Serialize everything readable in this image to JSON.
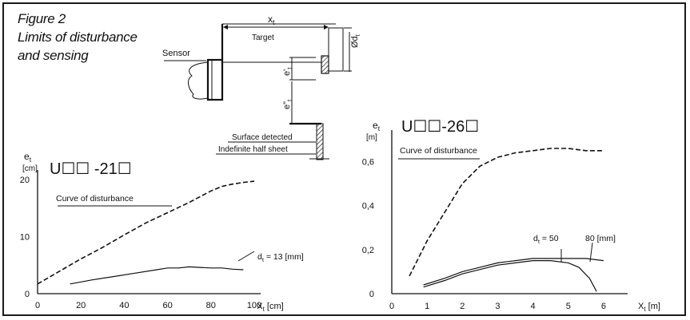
{
  "figure": {
    "number": "Figure 2",
    "caption_line1": "Limits of disturbance",
    "caption_line2": "and sensing"
  },
  "diagram": {
    "sensor_label": "Sensor",
    "xt_label": "x",
    "xt_sub": "t",
    "target_label": "Target",
    "dt_label": "Ød",
    "dt_sub": "t",
    "et1_label": "e'",
    "et1_sub": "t",
    "et2_label": "e\"",
    "et2_sub": "t",
    "surface_label": "Surface detected",
    "half_sheet_label": "Indefinite half sheet"
  },
  "chart_data": [
    {
      "type": "line",
      "title": "U☐☐ -21☐",
      "ylabel": "e",
      "ylabel_sub": "t",
      "yunit": "[cm]",
      "xlabel": "X",
      "xlabel_sub": "t",
      "xunit": "[cm]",
      "xlim": [
        0,
        100
      ],
      "ylim": [
        0,
        20
      ],
      "xticks": [
        "0",
        "20",
        "40",
        "60",
        "80",
        "100"
      ],
      "xtick_values": [
        0,
        20,
        40,
        60,
        80,
        100
      ],
      "yticks": [
        "0",
        "10",
        "20"
      ],
      "ytick_values": [
        0,
        10,
        20
      ],
      "series": [
        {
          "name": "Curve of disturbance",
          "style": "dashed",
          "x": [
            0,
            10,
            20,
            30,
            40,
            50,
            60,
            70,
            80,
            85,
            90,
            95,
            100
          ],
          "y": [
            1.7,
            3.9,
            6.1,
            8.1,
            10.3,
            12.4,
            14.2,
            16.0,
            18.0,
            18.8,
            19.2,
            19.5,
            19.7
          ]
        },
        {
          "name": "d",
          "name_sub": "t",
          "name_rest": " = 13 [mm]",
          "style": "solid",
          "x": [
            15,
            25,
            35,
            45,
            55,
            60,
            65,
            70,
            75,
            80,
            85,
            90,
            95
          ],
          "y": [
            1.7,
            2.4,
            3.0,
            3.6,
            4.2,
            4.5,
            4.5,
            4.7,
            4.6,
            4.5,
            4.5,
            4.3,
            4.2
          ]
        }
      ]
    },
    {
      "type": "line",
      "title": "U☐☐-26☐",
      "ylabel": "e",
      "ylabel_sub": "t",
      "yunit": "[m]",
      "xlabel": "X",
      "xlabel_sub": "t",
      "xunit": "[m]",
      "xlim": [
        0,
        6.5
      ],
      "ylim": [
        0,
        0.7
      ],
      "xticks": [
        "0",
        "1",
        "2",
        "3",
        "4",
        "5",
        "6"
      ],
      "xtick_values": [
        0,
        1,
        2,
        3,
        4,
        5,
        6
      ],
      "yticks": [
        "0",
        "0,2",
        "0,4",
        "0,6"
      ],
      "ytick_values": [
        0,
        0.2,
        0.4,
        0.6
      ],
      "series": [
        {
          "name": "Curve of disturbance",
          "style": "dashed",
          "x": [
            0.5,
            1,
            1.5,
            2,
            2.5,
            3,
            3.5,
            4,
            4.5,
            5,
            5.5,
            6
          ],
          "y": [
            0.08,
            0.24,
            0.37,
            0.5,
            0.58,
            0.62,
            0.64,
            0.65,
            0.66,
            0.66,
            0.65,
            0.65
          ]
        },
        {
          "name": "d",
          "name_sub": "t",
          "name_rest": " = 50",
          "style": "solid",
          "x": [
            0.9,
            1.5,
            2,
            2.5,
            3,
            3.5,
            4,
            4.5,
            5,
            5.3,
            5.6,
            5.8
          ],
          "y": [
            0.03,
            0.06,
            0.09,
            0.11,
            0.13,
            0.14,
            0.15,
            0.15,
            0.14,
            0.12,
            0.07,
            0.01
          ]
        },
        {
          "name": "80 [mm]",
          "style": "solid",
          "x": [
            0.9,
            1.5,
            2,
            2.5,
            3,
            3.5,
            4,
            4.5,
            5,
            5.5,
            6
          ],
          "y": [
            0.04,
            0.07,
            0.1,
            0.12,
            0.14,
            0.15,
            0.16,
            0.16,
            0.16,
            0.16,
            0.15
          ]
        }
      ]
    }
  ]
}
